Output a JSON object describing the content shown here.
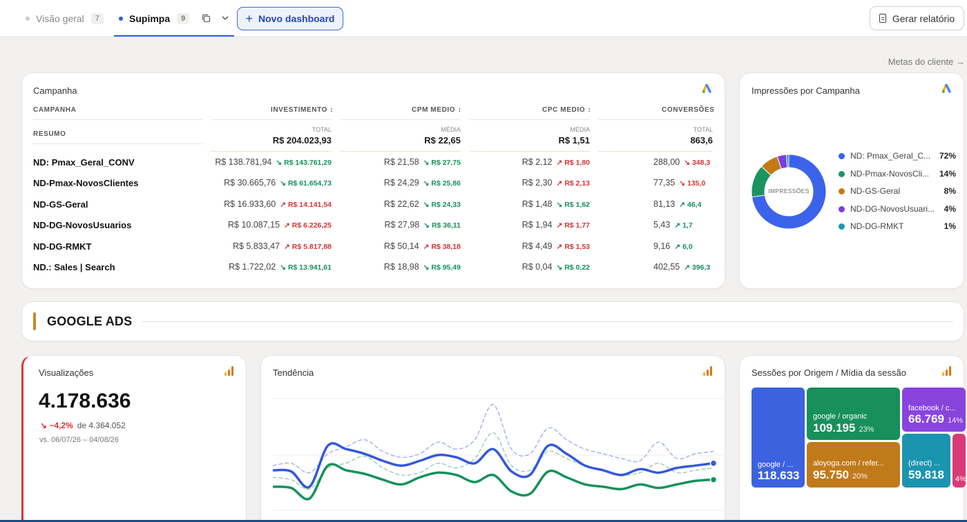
{
  "tabs": [
    {
      "label": "Visão geral",
      "count": "7"
    },
    {
      "label": "Supimpa",
      "count": "9"
    }
  ],
  "buttons": {
    "new_dashboard": "Novo dashboard",
    "generate_report": "Gerar relatório"
  },
  "metas_link": "Metas do cliente",
  "campaign_table": {
    "title": "Campanha",
    "headers": {
      "campaign": "CAMPANHA",
      "investment": "INVESTIMENTO",
      "cpm": "CPM MEDIO",
      "cpc": "CPC MEDIO",
      "conversions": "CONVERSÕES"
    },
    "summary_label": "RESUMO",
    "summary": {
      "investment": {
        "sub": "TOTAL",
        "value": "R$ 204.023,93"
      },
      "cpm": {
        "sub": "MÉDIA",
        "value": "R$ 22,65"
      },
      "cpc": {
        "sub": "MÉDIA",
        "value": "R$ 1,51"
      },
      "conversions": {
        "sub": "TOTAL",
        "value": "863,6"
      }
    },
    "rows": [
      {
        "name": "ND: Pmax_Geral_CONV",
        "inv": "R$ 138.781,94",
        "inv_prev": "R$ 143.761,29",
        "inv_dir": "down",
        "cpm": "R$ 21,58",
        "cpm_prev": "R$ 27,75",
        "cpm_dir": "down",
        "cpc": "R$ 2,12",
        "cpc_prev": "R$ 1,80",
        "cpc_dir": "up",
        "conv": "288,00",
        "conv_prev": "348,3",
        "conv_dir": "down-bad"
      },
      {
        "name": "ND-Pmax-NovosClientes",
        "inv": "R$ 30.665,76",
        "inv_prev": "R$ 61.654,73",
        "inv_dir": "down",
        "cpm": "R$ 24,29",
        "cpm_prev": "R$ 25,86",
        "cpm_dir": "down",
        "cpc": "R$ 2,30",
        "cpc_prev": "R$ 2,13",
        "cpc_dir": "up",
        "conv": "77,35",
        "conv_prev": "135,0",
        "conv_dir": "down-bad"
      },
      {
        "name": "ND-GS-Geral",
        "inv": "R$ 16.933,60",
        "inv_prev": "R$ 14.141,54",
        "inv_dir": "up",
        "cpm": "R$ 22,62",
        "cpm_prev": "R$ 24,33",
        "cpm_dir": "down",
        "cpc": "R$ 1,48",
        "cpc_prev": "R$ 1,62",
        "cpc_dir": "down",
        "conv": "81,13",
        "conv_prev": "46,4",
        "conv_dir": "up-good"
      },
      {
        "name": "ND-DG-NovosUsuarios",
        "inv": "R$ 10.087,15",
        "inv_prev": "R$ 6.226,25",
        "inv_dir": "up",
        "cpm": "R$ 27,98",
        "cpm_prev": "R$ 36,11",
        "cpm_dir": "down",
        "cpc": "R$ 1,94",
        "cpc_prev": "R$ 1,77",
        "cpc_dir": "up",
        "conv": "5,43",
        "conv_prev": "1,7",
        "conv_dir": "up-good"
      },
      {
        "name": "ND-DG-RMKT",
        "inv": "R$ 5.833,47",
        "inv_prev": "R$ 5.817,88",
        "inv_dir": "up",
        "cpm": "R$ 50,14",
        "cpm_prev": "R$ 38,18",
        "cpm_dir": "up",
        "cpc": "R$ 4,49",
        "cpc_prev": "R$ 1,53",
        "cpc_dir": "up",
        "conv": "9,16",
        "conv_prev": "6,0",
        "conv_dir": "up-good"
      },
      {
        "name": "ND.: Sales | Search",
        "inv": "R$ 1.722,02",
        "inv_prev": "R$ 13.941,61",
        "inv_dir": "down",
        "cpm": "R$ 18,98",
        "cpm_prev": "R$ 95,49",
        "cpm_dir": "down",
        "cpc": "R$ 0,04",
        "cpc_prev": "R$ 0,22",
        "cpc_dir": "down",
        "conv": "402,55",
        "conv_prev": "396,3",
        "conv_dir": "up-good"
      }
    ]
  },
  "impressions": {
    "title": "Impressões por Campanha",
    "center_label": "IMPRESSÕES",
    "slices": [
      {
        "name": "ND: Pmax_Geral_C...",
        "pct": "72%",
        "value": 72,
        "color": "#3b63ea"
      },
      {
        "name": "ND-Pmax-NovosCli...",
        "pct": "14%",
        "value": 14,
        "color": "#1b9460"
      },
      {
        "name": "ND-GS-Geral",
        "pct": "8%",
        "value": 8,
        "color": "#c27a16"
      },
      {
        "name": "ND-DG-NovosUsuari...",
        "pct": "4%",
        "value": 4,
        "color": "#7d3ce0"
      },
      {
        "name": "ND-DG-RMKT",
        "pct": "1%",
        "value": 1,
        "color": "#1b98b5"
      }
    ]
  },
  "section_title": "GOOGLE ADS",
  "views": {
    "title": "Visualizações",
    "value": "4.178.636",
    "change": "−4,2%",
    "prev": "de 4.364.052",
    "period": "vs. 06/07/26 – 04/08/26"
  },
  "trend": {
    "title": "Tendência"
  },
  "chart_data": {
    "type": "line",
    "series": [
      {
        "values": [
          34,
          33,
          20,
          55,
          52,
          48,
          42,
          38,
          42,
          47,
          45,
          40,
          52,
          33,
          30,
          55,
          48,
          38,
          34,
          30,
          35,
          32,
          36,
          38,
          40
        ],
        "color": "#3457dc",
        "style": "solid"
      },
      {
        "values": [
          20,
          19,
          10,
          38,
          34,
          31,
          26,
          22,
          28,
          32,
          30,
          24,
          30,
          16,
          14,
          33,
          28,
          22,
          20,
          18,
          22,
          19,
          22,
          25,
          26
        ],
        "color": "#15915c",
        "style": "solid"
      },
      {
        "values": [
          38,
          40,
          32,
          48,
          54,
          60,
          50,
          45,
          48,
          58,
          52,
          60,
          90,
          52,
          48,
          70,
          60,
          52,
          48,
          44,
          42,
          58,
          44,
          48,
          50
        ],
        "color": "#9aa8ef",
        "style": "dashed"
      },
      {
        "values": [
          28,
          26,
          18,
          36,
          40,
          46,
          36,
          30,
          32,
          40,
          36,
          44,
          66,
          38,
          34,
          50,
          44,
          38,
          34,
          30,
          32,
          40,
          32,
          34,
          36
        ],
        "color": "#8fcaa9",
        "style": "dashed"
      }
    ]
  },
  "sessions": {
    "title": "Sessões por Origem / Mídia da sessão",
    "tiles": [
      {
        "label": "google / ...",
        "value": "118.633",
        "pct": "",
        "color": "#3c62e0"
      },
      {
        "label": "google / organic",
        "value": "109.195",
        "pct": "23%",
        "color": "#17905a"
      },
      {
        "label": "facebook / c...",
        "value": "66.769",
        "pct": "14%",
        "color": "#8944dd"
      },
      {
        "label": "aloyoga.com / refer...",
        "value": "95.750",
        "pct": "20%",
        "color": "#c17a1a"
      },
      {
        "label": "(direct) ...",
        "value": "59.818",
        "pct": "",
        "color": "#1a95b0"
      },
      {
        "label": "",
        "value": "",
        "pct": "4%",
        "color": "#d83a7a"
      }
    ]
  }
}
